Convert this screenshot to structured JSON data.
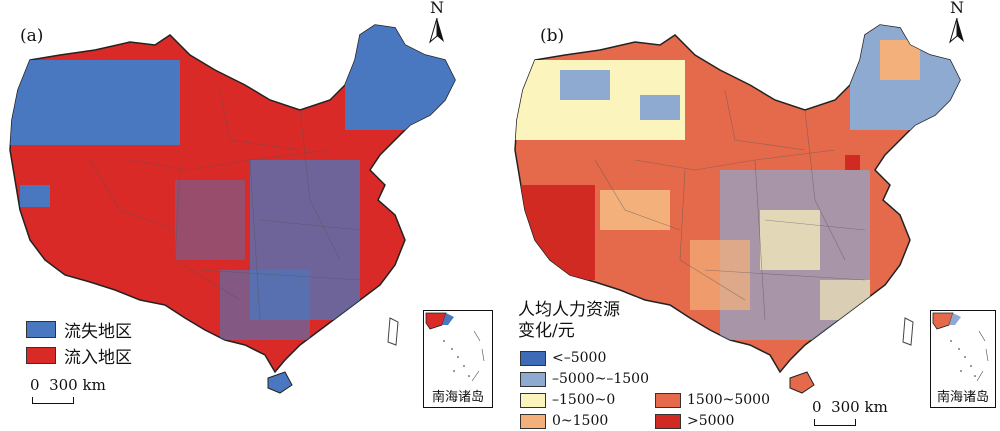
{
  "panels": [
    {
      "label": "(a)",
      "north": "N",
      "legend": [
        {
          "label": "流失地区",
          "color": "#4a78c0"
        },
        {
          "label": "流入地区",
          "color": "#d92a28"
        }
      ],
      "scale": "0  300 km",
      "inset_label": "南海诸岛"
    },
    {
      "label": "(b)",
      "north": "N",
      "legend_title_line1": "人均人力资源",
      "legend_title_line2": "变化/元",
      "legend": [
        {
          "label": "<–5000",
          "color": "#3d6bb8"
        },
        {
          "label": "–5000~–1500",
          "color": "#8faad0"
        },
        {
          "label": "–1500~0",
          "color": "#fbf4bd"
        },
        {
          "label": "0~1500",
          "color": "#f3b07a"
        },
        {
          "label": "1500~5000",
          "color": "#e46a4b"
        },
        {
          "label": ">5000",
          "color": "#d12a22"
        }
      ],
      "scale": "0  300 km",
      "inset_label": "南海诸岛"
    }
  ]
}
